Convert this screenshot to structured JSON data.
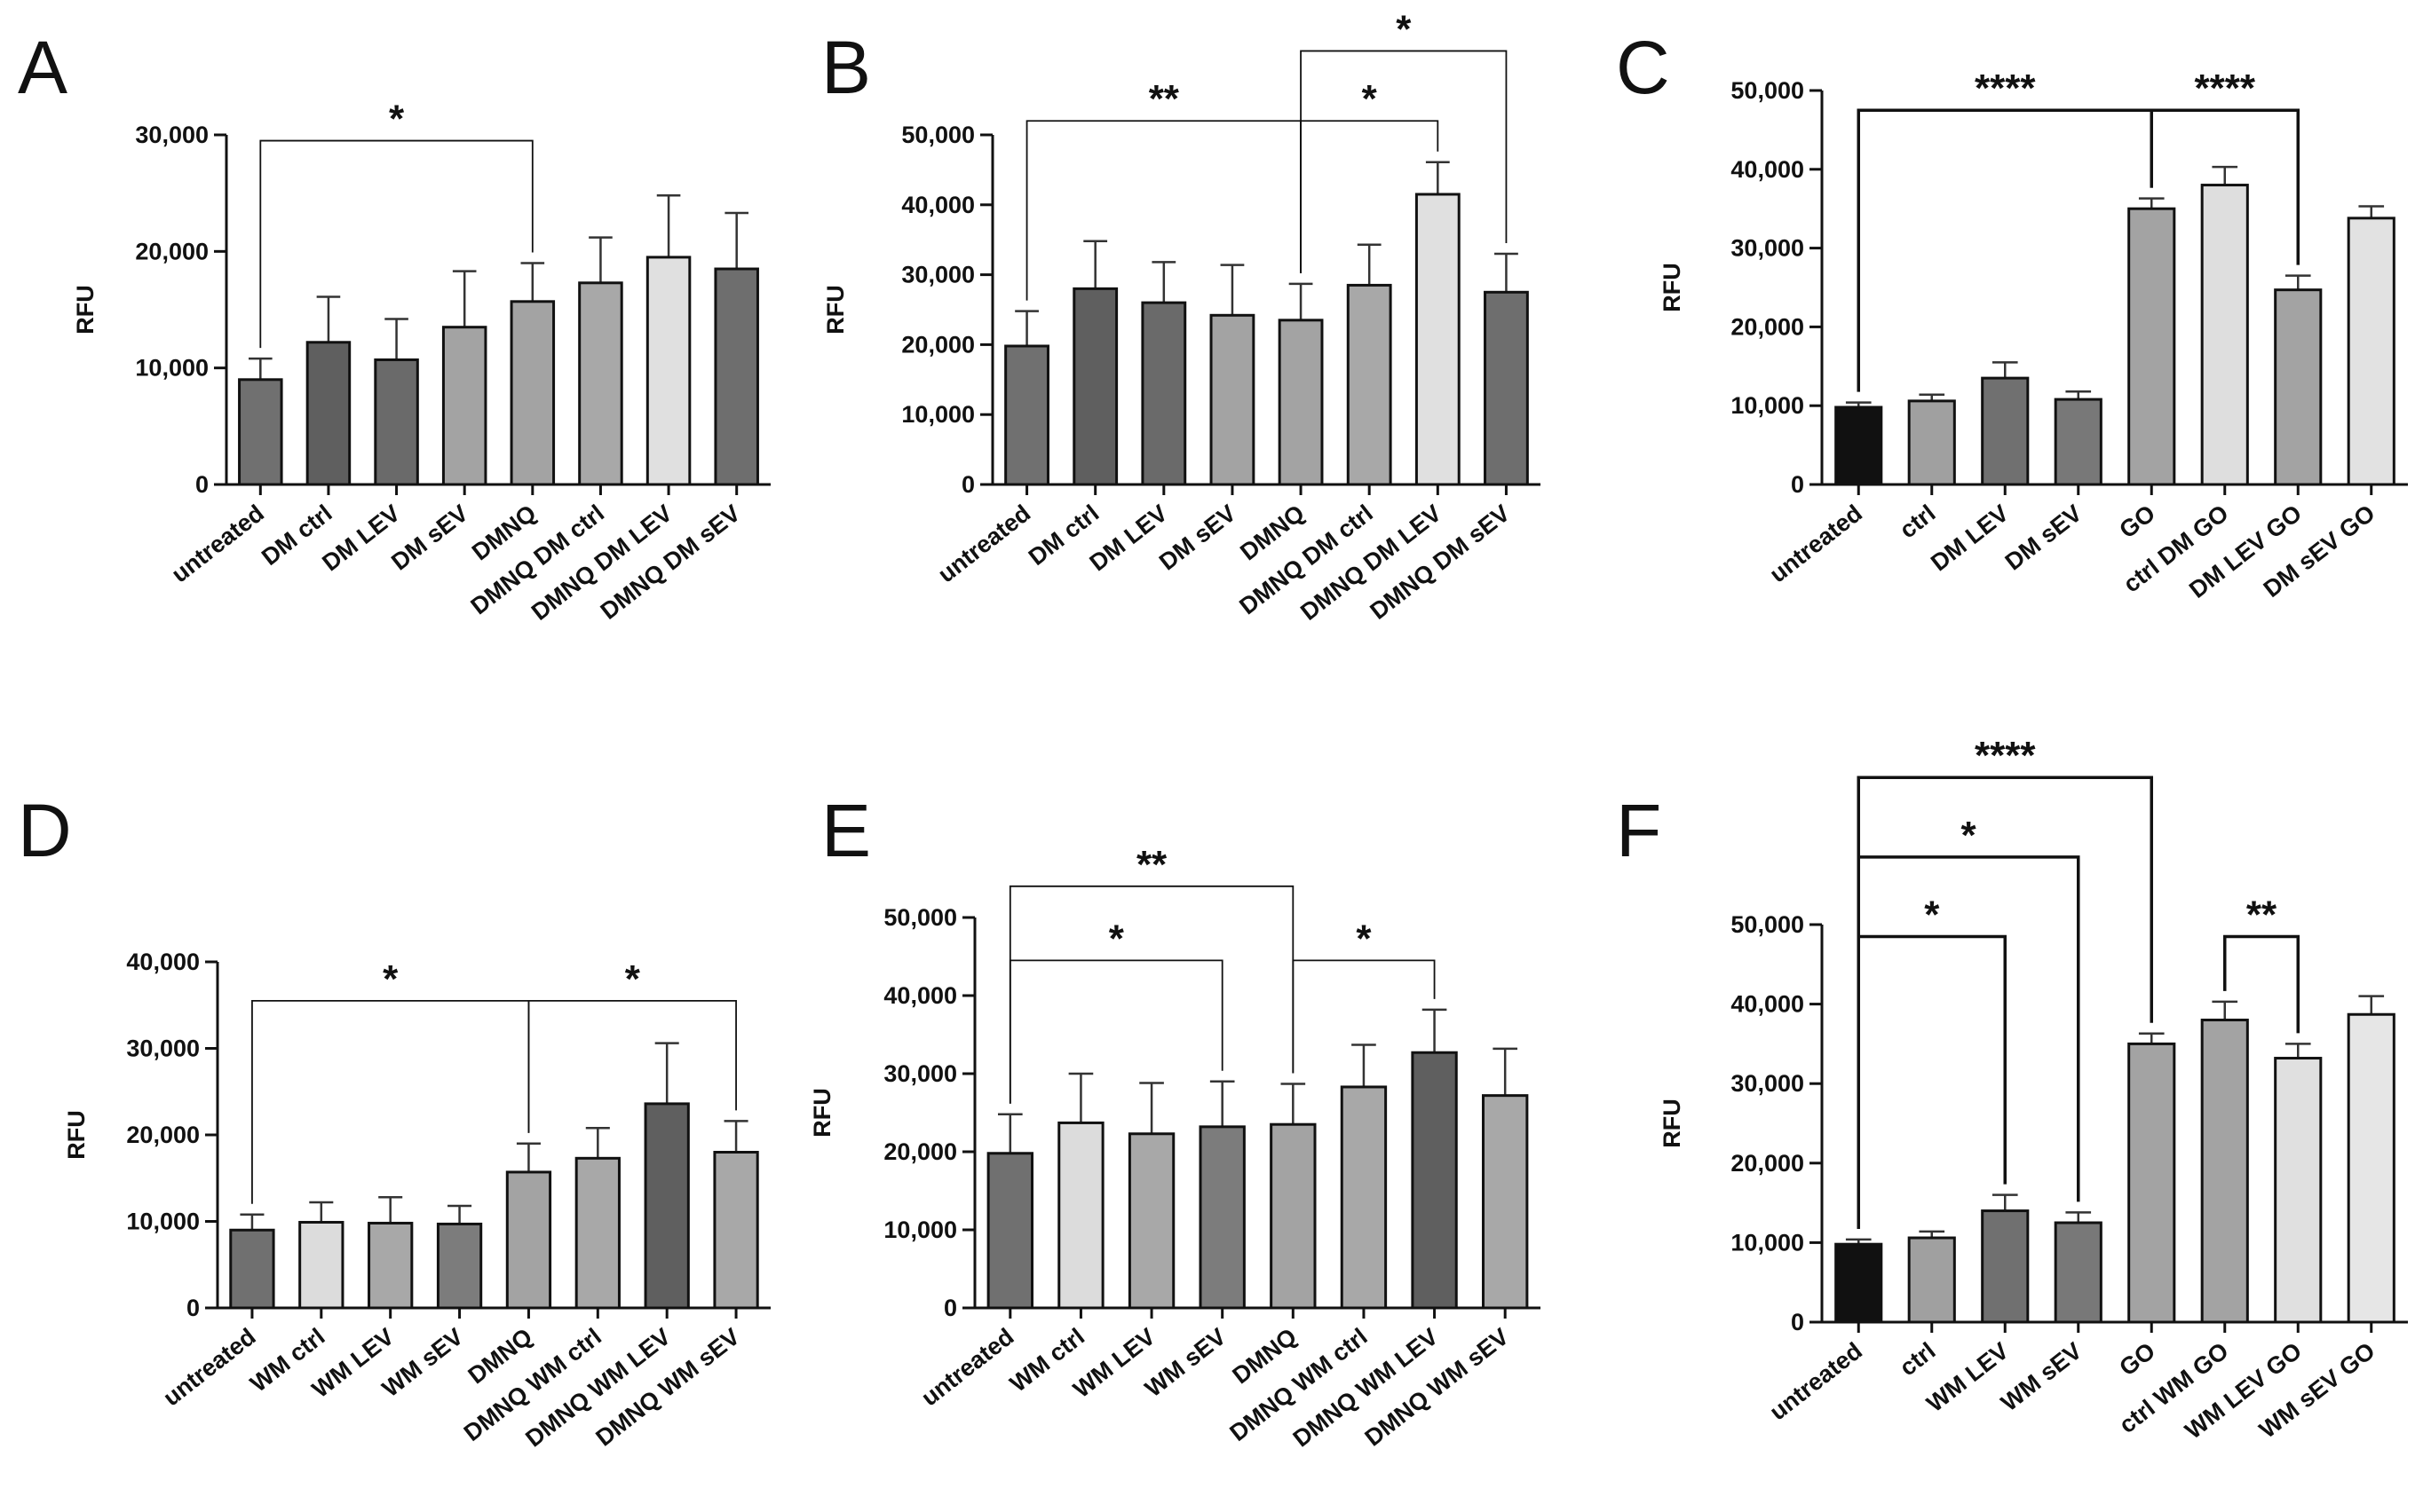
{
  "chart_data": [
    {
      "panel": "A",
      "type": "bar",
      "ylabel": "RFU",
      "ylim": [
        0,
        30000
      ],
      "yticks": [
        0,
        10000,
        20000,
        30000
      ],
      "ytick_labels": [
        "0",
        "10,000",
        "20,000",
        "30,000"
      ],
      "categories": [
        "untreated",
        "DM ctrl",
        "DM LEV",
        "DM sEV",
        "DMNQ",
        "DMNQ DM ctrl",
        "DMNQ DM LEV",
        "DMNQ DM sEV"
      ],
      "values": [
        9000,
        12200,
        10700,
        13500,
        15700,
        17300,
        19500,
        18500
      ],
      "errors": [
        1800,
        3900,
        3500,
        4800,
        3300,
        3900,
        5300,
        4800
      ],
      "bar_colors": [
        "#707070",
        "#5f5f5f",
        "#6a6a6a",
        "#a3a3a3",
        "#a3a3a3",
        "#a8a8a8",
        "#e0e0e0",
        "#6e6e6e"
      ],
      "significance": [
        {
          "from": 0,
          "to": 4,
          "label": "*",
          "y": 29500
        }
      ]
    },
    {
      "panel": "B",
      "type": "bar",
      "ylabel": "RFU",
      "ylim": [
        0,
        50000
      ],
      "yticks": [
        0,
        10000,
        20000,
        30000,
        40000,
        50000
      ],
      "ytick_labels": [
        "0",
        "10,000",
        "20,000",
        "30,000",
        "40,000",
        "50,000"
      ],
      "categories": [
        "untreated",
        "DM ctrl",
        "DM LEV",
        "DM sEV",
        "DMNQ",
        "DMNQ DM ctrl",
        "DMNQ DM LEV",
        "DMNQ DM sEV"
      ],
      "values": [
        19800,
        28000,
        26000,
        24200,
        23500,
        28500,
        41500,
        27500
      ],
      "errors": [
        5000,
        6800,
        5800,
        7200,
        5200,
        5800,
        4600,
        5500
      ],
      "bar_colors": [
        "#707070",
        "#5f5f5f",
        "#6a6a6a",
        "#a3a3a3",
        "#a3a3a3",
        "#a8a8a8",
        "#e0e0e0",
        "#6e6e6e"
      ],
      "significance": [
        {
          "from": 0,
          "to": 4,
          "label": "**",
          "y": 52000
        },
        {
          "from": 4,
          "to": 6,
          "label": "*",
          "y": 52000
        },
        {
          "from": 4,
          "to": 7,
          "label": "*",
          "y": 62000
        }
      ]
    },
    {
      "panel": "C",
      "type": "bar",
      "ylabel": "RFU",
      "ylim": [
        0,
        50000
      ],
      "yticks": [
        0,
        10000,
        20000,
        30000,
        40000,
        50000
      ],
      "ytick_labels": [
        "0",
        "10,000",
        "20,000",
        "30,000",
        "40,000",
        "50,000"
      ],
      "categories": [
        "untreated",
        "ctrl",
        "DM LEV",
        "DM sEV",
        "GO",
        "ctrl DM GO",
        "DM LEV GO",
        "DM sEV GO"
      ],
      "values": [
        9800,
        10600,
        13500,
        10800,
        35000,
        38000,
        24700,
        33800
      ],
      "errors": [
        600,
        800,
        2000,
        1000,
        1300,
        2300,
        1800,
        1500
      ],
      "bar_colors": [
        "#111111",
        "#a0a0a0",
        "#707070",
        "#787878",
        "#a3a3a3",
        "#dedede",
        "#a3a3a3",
        "#e2e2e2"
      ],
      "significance": [
        {
          "from": 0,
          "to": 4,
          "label": "****",
          "y": 47500
        },
        {
          "from": 4,
          "to": 6,
          "label": "****",
          "y": 47500
        }
      ]
    },
    {
      "panel": "D",
      "type": "bar",
      "ylabel": "RFU",
      "ylim": [
        0,
        40000
      ],
      "yticks": [
        0,
        10000,
        20000,
        30000,
        40000
      ],
      "ytick_labels": [
        "0",
        "10,000",
        "20,000",
        "30,000",
        "40,000"
      ],
      "categories": [
        "untreated",
        "WM ctrl",
        "WM LEV",
        "WM sEV",
        "DMNQ",
        "DMNQ WM ctrl",
        "DMNQ WM LEV",
        "DMNQ WM sEV"
      ],
      "values": [
        9000,
        9900,
        9800,
        9700,
        15700,
        17300,
        23600,
        18000
      ],
      "errors": [
        1800,
        2300,
        3000,
        2100,
        3300,
        3500,
        7000,
        3600
      ],
      "bar_colors": [
        "#707070",
        "#dcdcdc",
        "#a8a8a8",
        "#7c7c7c",
        "#a3a3a3",
        "#a8a8a8",
        "#5f5f5f",
        "#a8a8a8"
      ],
      "significance": [
        {
          "from": 0,
          "to": 4,
          "label": "*",
          "y": 35500
        },
        {
          "from": 4,
          "to": 7,
          "label": "*",
          "y": 35500
        }
      ]
    },
    {
      "panel": "E",
      "type": "bar",
      "ylabel": "RFU",
      "ylim": [
        0,
        50000
      ],
      "yticks": [
        0,
        10000,
        20000,
        30000,
        40000,
        50000
      ],
      "ytick_labels": [
        "0",
        "10,000",
        "20,000",
        "30,000",
        "40,000",
        "50,000"
      ],
      "categories": [
        "untreated",
        "WM ctrl",
        "WM LEV",
        "WM sEV",
        "DMNQ",
        "DMNQ WM ctrl",
        "DMNQ WM LEV",
        "DMNQ WM sEV"
      ],
      "values": [
        19800,
        23700,
        22300,
        23200,
        23500,
        28300,
        32700,
        27200
      ],
      "errors": [
        5000,
        6300,
        6500,
        5800,
        5200,
        5400,
        5500,
        6000
      ],
      "bar_colors": [
        "#707070",
        "#dcdcdc",
        "#a8a8a8",
        "#7c7c7c",
        "#a3a3a3",
        "#a8a8a8",
        "#5f5f5f",
        "#a8a8a8"
      ],
      "significance": [
        {
          "from": 0,
          "to": 4,
          "label": "**",
          "y": 54000
        },
        {
          "from": 0,
          "to": 3,
          "label": "*",
          "y": 44500
        },
        {
          "from": 4,
          "to": 6,
          "label": "*",
          "y": 44500
        }
      ]
    },
    {
      "panel": "F",
      "type": "bar",
      "ylabel": "RFU",
      "ylim": [
        0,
        50000
      ],
      "yticks": [
        0,
        10000,
        20000,
        30000,
        40000,
        50000
      ],
      "ytick_labels": [
        "0",
        "10,000",
        "20,000",
        "30,000",
        "40,000",
        "50,000"
      ],
      "categories": [
        "untreated",
        "ctrl",
        "WM LEV",
        "WM sEV",
        "GO",
        "ctrl WM GO",
        "WM LEV GO",
        "WM sEV GO"
      ],
      "values": [
        9800,
        10600,
        14000,
        12500,
        35000,
        38000,
        33200,
        38700
      ],
      "errors": [
        600,
        800,
        2000,
        1300,
        1300,
        2300,
        1800,
        2300
      ],
      "bar_colors": [
        "#111111",
        "#a0a0a0",
        "#707070",
        "#787878",
        "#a3a3a3",
        "#a3a3a3",
        "#e0e0e0",
        "#e6e6e6"
      ],
      "significance": [
        {
          "from": 0,
          "to": 2,
          "label": "*",
          "y": 48500
        },
        {
          "from": 0,
          "to": 3,
          "label": "*",
          "y": 58500
        },
        {
          "from": 0,
          "to": 4,
          "label": "****",
          "y": 68500
        },
        {
          "from": 5,
          "to": 6,
          "label": "**",
          "y": 48500
        }
      ]
    }
  ]
}
